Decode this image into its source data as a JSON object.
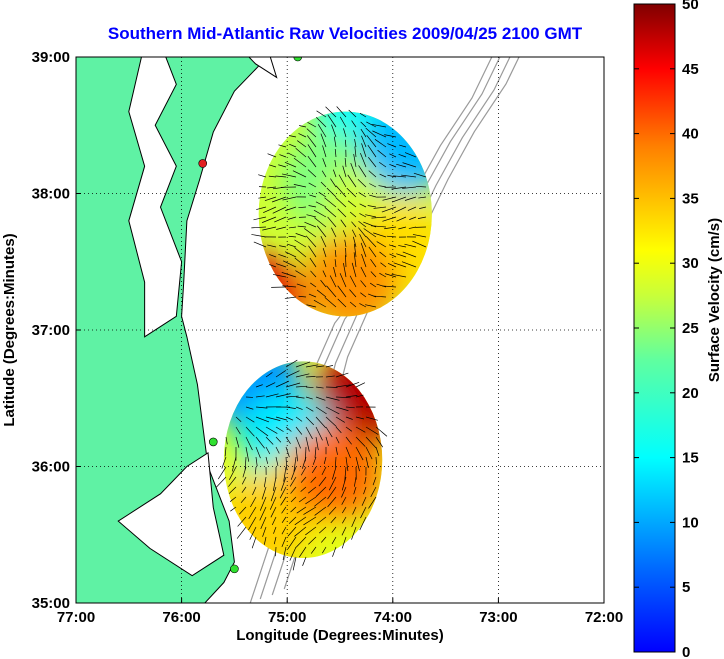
{
  "chart_data": {
    "type": "heatmap",
    "title": "Southern Mid-Atlantic Raw Velocities 2009/04/25 2100 GMT",
    "xlabel": "Longitude (Degrees:Minutes)",
    "ylabel": "Latitude (Degrees:Minutes)",
    "x_ticks": [
      "77:00",
      "76:00",
      "75:00",
      "74:00",
      "73:00",
      "72:00"
    ],
    "y_ticks": [
      "39:00",
      "38:00",
      "37:00",
      "36:00",
      "35:00"
    ],
    "xlim": [
      -77,
      -72
    ],
    "ylim": [
      35,
      39
    ],
    "grid": true,
    "colorbar": {
      "label": "Surface Velocity (cm/s)",
      "range": [
        0,
        50
      ],
      "ticks": [
        "0",
        "5",
        "10",
        "15",
        "20",
        "25",
        "30",
        "35",
        "40",
        "45",
        "50"
      ],
      "colormap": "jet"
    },
    "colors": {
      "land": "#5ff2a4",
      "water": "#ffffff",
      "coastline": "#000000",
      "bathymetry": "#9a9a9a",
      "station_north": "#e02020",
      "station_other": "#30e030"
    },
    "velocity_regions": [
      {
        "name": "north",
        "center": [
          -74.45,
          37.85
        ],
        "rx": 0.82,
        "ry": 0.75,
        "patches": [
          {
            "lon": -74.3,
            "lat": 38.6,
            "v": 16
          },
          {
            "lon": -74.6,
            "lat": 38.1,
            "v": 24
          },
          {
            "lon": -74.2,
            "lat": 37.9,
            "v": 28
          },
          {
            "lon": -73.9,
            "lat": 37.6,
            "v": 33
          },
          {
            "lon": -74.4,
            "lat": 37.35,
            "v": 38
          },
          {
            "lon": -75.3,
            "lat": 37.2,
            "v": 46
          },
          {
            "lon": -73.85,
            "lat": 38.35,
            "v": 11
          }
        ]
      },
      {
        "name": "south",
        "center": [
          -74.85,
          36.05
        ],
        "rx": 0.75,
        "ry": 0.72,
        "patches": [
          {
            "lon": -74.3,
            "lat": 36.5,
            "v": 48
          },
          {
            "lon": -75.3,
            "lat": 36.6,
            "v": 9
          },
          {
            "lon": -75.0,
            "lat": 36.2,
            "v": 14
          },
          {
            "lon": -74.8,
            "lat": 35.8,
            "v": 30
          },
          {
            "lon": -75.2,
            "lat": 35.6,
            "v": 34
          },
          {
            "lon": -74.55,
            "lat": 35.95,
            "v": 40
          }
        ]
      }
    ],
    "stations": [
      {
        "lon": -74.9,
        "lat": 39.0,
        "color_key": "station_other"
      },
      {
        "lon": -75.8,
        "lat": 38.22,
        "color_key": "station_north"
      },
      {
        "lon": -75.7,
        "lat": 36.18,
        "color_key": "station_other"
      },
      {
        "lon": -75.5,
        "lat": 35.25,
        "color_key": "station_other"
      }
    ]
  }
}
